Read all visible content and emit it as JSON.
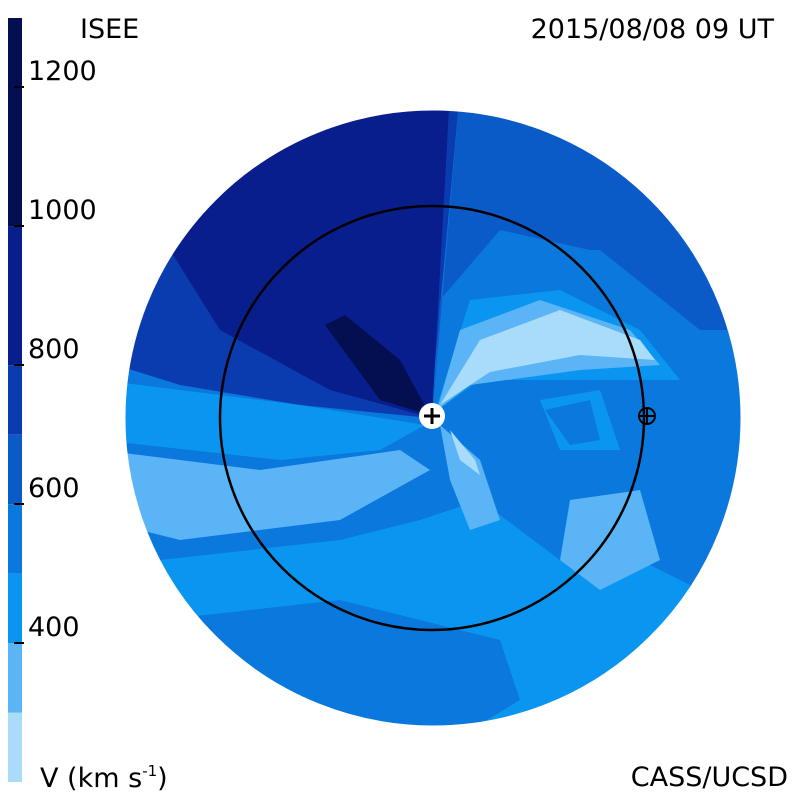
{
  "header": {
    "left_title": "ISEE",
    "right_title": "2015/08/08 09 UT"
  },
  "footer": {
    "credit": "CASS/UCSD",
    "units_prefix": "V (km s",
    "units_exp": "-1",
    "units_suffix": ")"
  },
  "colors": {
    "bands": [
      "#a8dcfa",
      "#5ab4f5",
      "#0a96f0",
      "#0a78dc",
      "#0a5ac8",
      "#0a3cb0",
      "#071e8c",
      "#030f50"
    ],
    "sun_marker": "#ffffff",
    "orbit": "#000000"
  },
  "chart_data": {
    "type": "heatmap",
    "quantity": "solar wind velocity",
    "colorbar": {
      "min": 200,
      "max": 1300,
      "ticks": [
        400,
        600,
        800,
        1000,
        1200
      ],
      "tick_labels": [
        "400",
        "600",
        "800",
        "1000",
        "1200"
      ],
      "band_edges": [
        200,
        300,
        400,
        500,
        600,
        700,
        800,
        1000,
        1300
      ]
    },
    "markers": [
      {
        "name": "Sun",
        "symbol": "plus-in-circle"
      },
      {
        "name": "Earth",
        "symbol": "circled-plus"
      }
    ],
    "regions": [
      {
        "direction": "upper-left",
        "velocity": 1000
      },
      {
        "direction": "upper-right",
        "velocity": 600
      },
      {
        "direction": "east of Sun",
        "velocity": 300
      },
      {
        "direction": "lower",
        "velocity": 550
      },
      {
        "direction": "left",
        "velocity": 450
      }
    ]
  }
}
